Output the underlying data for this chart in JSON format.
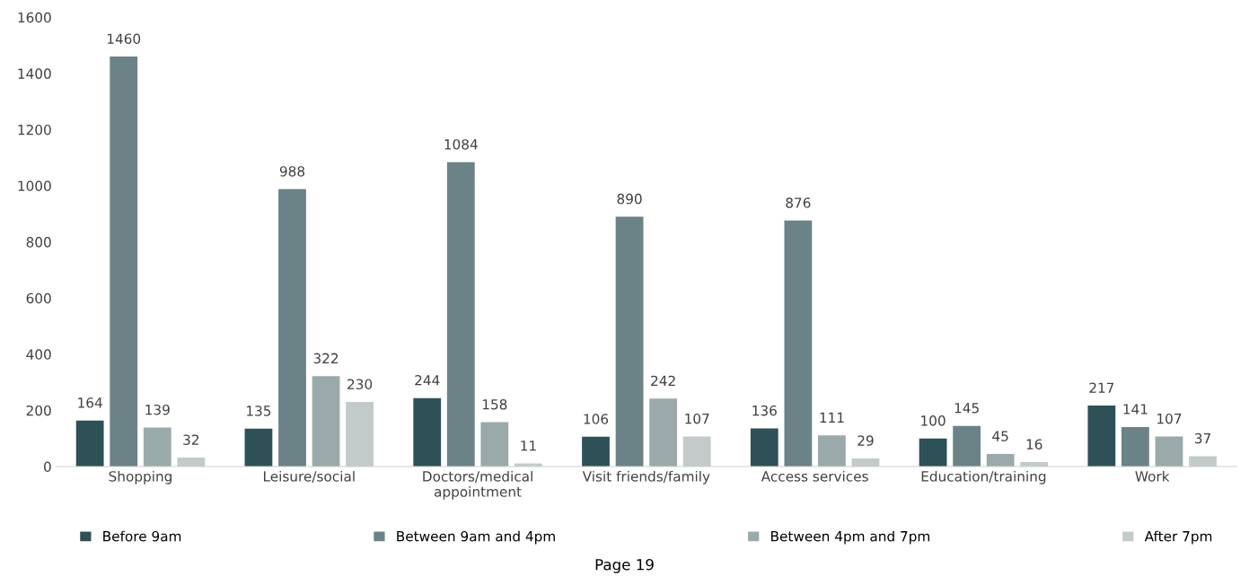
{
  "chart_data": {
    "type": "bar",
    "categories": [
      "Shopping",
      "Leisure/social",
      "Doctors/medical appointment",
      "Visit friends/family",
      "Access services",
      "Education/training",
      "Work"
    ],
    "series": [
      {
        "name": "Before 9am",
        "color": "#2e5157",
        "values": [
          164,
          135,
          244,
          106,
          136,
          100,
          217
        ]
      },
      {
        "name": "Between 9am and 4pm",
        "color": "#6b8386",
        "values": [
          1460,
          988,
          1084,
          890,
          876,
          145,
          141
        ]
      },
      {
        "name": "Between 4pm and 7pm",
        "color": "#9aaaab",
        "values": [
          139,
          322,
          158,
          242,
          111,
          45,
          107
        ]
      },
      {
        "name": "After 7pm",
        "color": "#c2cbca",
        "values": [
          32,
          230,
          11,
          107,
          29,
          16,
          37
        ]
      }
    ],
    "ylim": [
      0,
      1600
    ],
    "yticks": [
      0,
      200,
      400,
      600,
      800,
      1000,
      1200,
      1400,
      1600
    ],
    "data_labels": true,
    "grid": false,
    "legend": "bottom",
    "annotations": [
      "Page 19"
    ]
  }
}
